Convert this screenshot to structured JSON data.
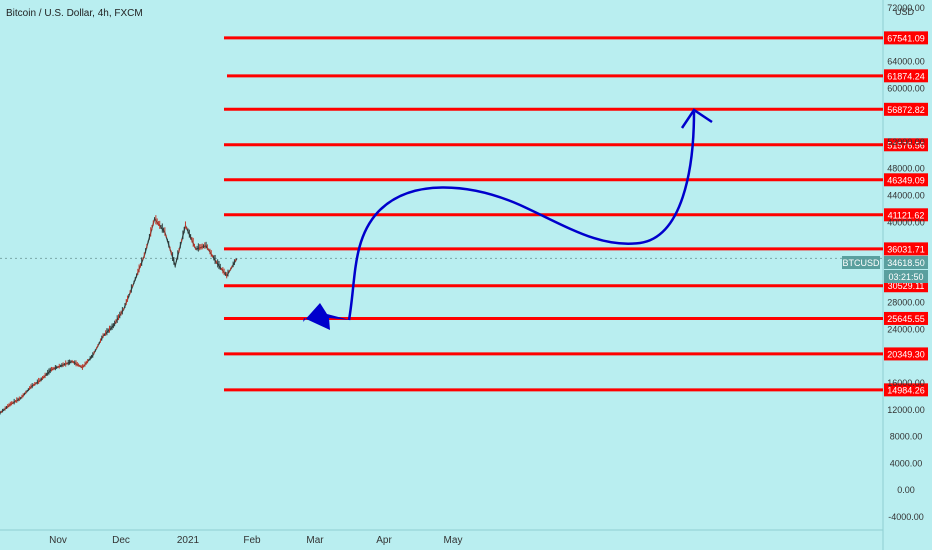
{
  "header": {
    "title": "Bitcoin / U.S. Dollar, 4h, FXCM"
  },
  "y_axis": {
    "unit": "USD",
    "ticks": [
      "72000.00",
      "64000.00",
      "60000.00",
      "52000.00",
      "48000.00",
      "44000.00",
      "40000.00",
      "32000.00",
      "28000.00",
      "24000.00",
      "16000.00",
      "12000.00",
      "8000.00",
      "4000.00",
      "0.00",
      "-4000.00"
    ]
  },
  "x_axis": {
    "ticks": [
      "Nov",
      "Dec",
      "2021",
      "Feb",
      "Mar",
      "Apr",
      "May"
    ]
  },
  "price_tag": {
    "symbol": "BTCUSD",
    "price": "34618.50",
    "countdown": "03:21:50"
  },
  "colors": {
    "background": "#b9eef0",
    "level": "#ff0000",
    "arrow": "#0000cc",
    "candle": "#2f3b3a",
    "tag": "#5a9f9e"
  },
  "chart_data": {
    "type": "line",
    "title": "Bitcoin / U.S. Dollar, 4h, FXCM",
    "ylim": [
      -4000,
      72000
    ],
    "series": [
      {
        "x": [
          "Oct 20",
          "Oct 26",
          "Nov 1",
          "Nov 8",
          "Nov 15",
          "Nov 22",
          "Nov 28",
          "Dec 4",
          "Dec 10",
          "Dec 16",
          "Dec 20",
          "Dec 24",
          "Dec 28",
          "Jan 2",
          "Jan 6",
          "Jan 8",
          "Jan 10",
          "Jan 12",
          "Jan 14",
          "Jan 16",
          "Jan 18",
          "Jan 20",
          "Jan 22",
          "Jan 24"
        ],
        "values": [
          11500,
          12800,
          13700,
          15400,
          16500,
          18000,
          18600,
          19200,
          18300,
          20100,
          23000,
          24500,
          27000,
          31000,
          35000,
          40500,
          38500,
          33500,
          39500,
          36000,
          36500,
          34000,
          32000,
          34618.5
        ]
      }
    ],
    "levels": [
      "67541.09",
      "61874.24",
      "56872.82",
      "51576.56",
      "46349.09",
      "41121.62",
      "36031.71",
      "30529.11",
      "25645.55",
      "20349.30",
      "14984.26"
    ],
    "level_values": [
      67541.09,
      61874.24,
      56872.82,
      51576.56,
      46349.09,
      41121.62,
      36031.71,
      30529.11,
      25645.55,
      20349.3,
      14984.26
    ],
    "last_price": 34618.5
  }
}
